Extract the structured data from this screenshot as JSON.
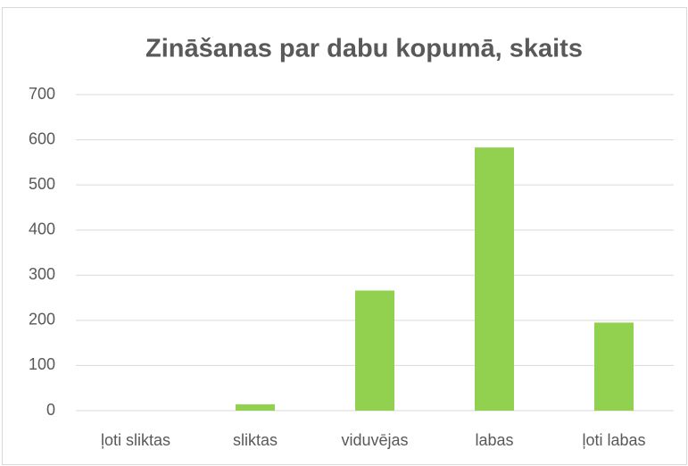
{
  "chart_data": {
    "type": "bar",
    "title": "Zināšanas par dabu kopumā, skaits",
    "categories": [
      "ļoti sliktas",
      "sliktas",
      "viduvējas",
      "labas",
      "ļoti labas"
    ],
    "values": [
      0,
      14,
      266,
      583,
      195
    ],
    "color": "#92d050",
    "ylim": [
      0,
      700
    ],
    "yticks": [
      0,
      100,
      200,
      300,
      400,
      500,
      600,
      700
    ],
    "grid": true
  }
}
